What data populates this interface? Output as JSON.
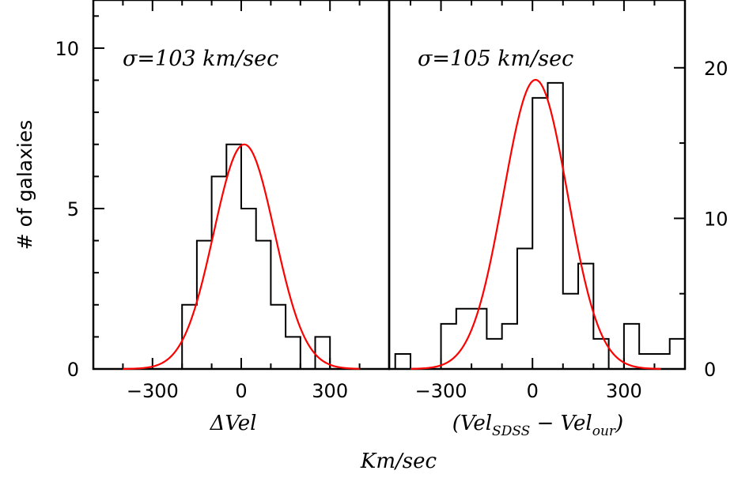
{
  "chart_data": [
    {
      "type": "bar",
      "panel": "left",
      "histogram_bins_left_edges": [
        -200,
        -150,
        -100,
        -50,
        0,
        50,
        100,
        150,
        200,
        250,
        300
      ],
      "bin_width": 50,
      "counts": [
        2,
        4,
        6,
        7,
        5,
        4,
        2,
        1,
        0,
        1
      ],
      "counts_bins_left_edges": [
        -200,
        -150,
        -100,
        -50,
        0,
        50,
        100,
        150,
        200,
        250
      ],
      "fit": {
        "type": "gaussian",
        "mean": 10,
        "sigma": 103,
        "amplitude": 7.0
      },
      "fit_color": "#ff0000",
      "annotation": "σ=103 km/sec",
      "xlabel": "ΔVel",
      "ylabel": "# of galaxies",
      "xlim": [
        -500,
        500
      ],
      "ylim": [
        0,
        11.5
      ],
      "xticks": [
        -300,
        0,
        300
      ],
      "yticks": [
        0,
        5,
        10
      ]
    },
    {
      "type": "bar",
      "panel": "right",
      "bin_width": 50,
      "counts_bins_left_edges": [
        -450,
        -400,
        -350,
        -300,
        -250,
        -200,
        -150,
        -100,
        -50,
        0,
        50,
        100,
        150,
        200,
        250,
        300,
        350,
        400,
        450
      ],
      "counts": [
        1,
        0,
        0,
        3,
        4,
        4,
        2,
        3,
        8,
        18,
        19,
        5,
        7,
        2,
        0,
        3,
        1,
        1,
        2
      ],
      "fit": {
        "type": "gaussian",
        "mean": 10,
        "sigma": 105,
        "amplitude": 19.2
      },
      "fit_color": "#ff0000",
      "annotation": "σ=105 km/sec",
      "xlabel_main": "(Vel",
      "xlabel_sub1": "SDSS",
      "xlabel_mid": " − Vel",
      "xlabel_sub2": "our",
      "xlabel_end": ")",
      "xlim": [
        -470,
        500
      ],
      "ylim": [
        0,
        24.5
      ],
      "xticks": [
        -300,
        0,
        300
      ],
      "yticks": [
        0,
        10,
        20
      ]
    }
  ],
  "shared_xlabel": "Km/sec",
  "tick_labels": {
    "left_x": [
      "−300",
      "0",
      "300"
    ],
    "left_y": [
      "0",
      "5",
      "10"
    ],
    "right_x": [
      "−300",
      "0",
      "300"
    ],
    "right_y": [
      "0",
      "10",
      "20"
    ]
  }
}
